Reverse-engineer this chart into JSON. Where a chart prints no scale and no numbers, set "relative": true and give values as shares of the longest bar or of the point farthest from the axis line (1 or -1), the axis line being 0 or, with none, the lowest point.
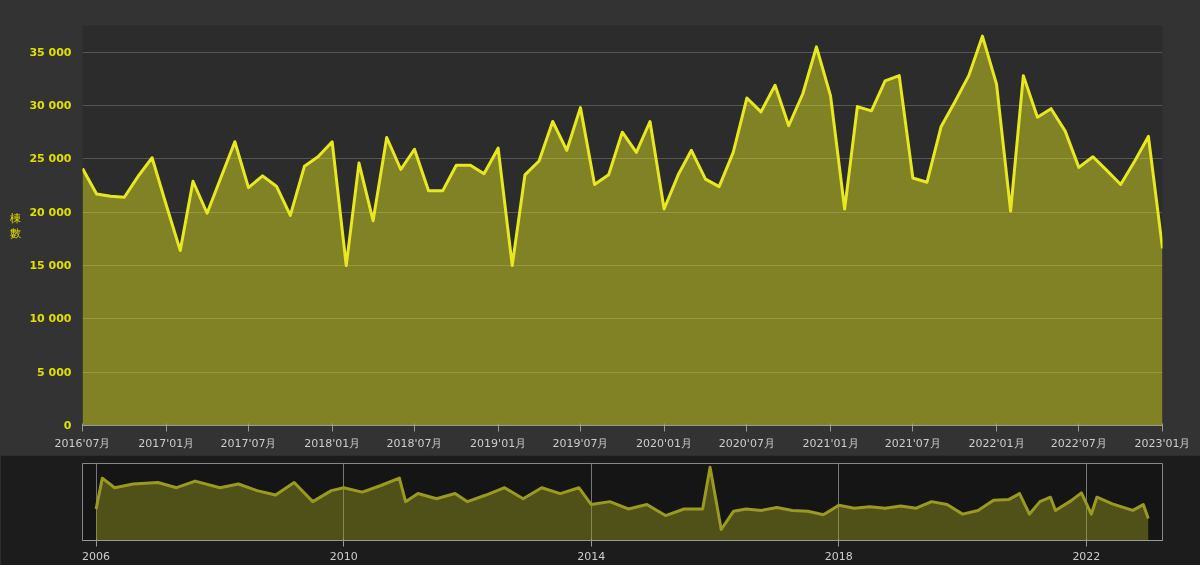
{
  "chart_data": [
    {
      "type": "area",
      "ylabel": "棟數",
      "color": "#e8e820",
      "x": [
        "2016-07",
        "2016-08",
        "2016-09",
        "2016-10",
        "2016-11",
        "2016-12",
        "2017-01",
        "2017-02",
        "2017-03",
        "2017-04",
        "2017-05",
        "2017-06",
        "2017-07",
        "2017-08",
        "2017-09",
        "2017-10",
        "2017-11",
        "2017-12",
        "2018-01",
        "2018-02",
        "2018-03",
        "2018-04",
        "2018-05",
        "2018-06",
        "2018-07",
        "2018-08",
        "2018-09",
        "2018-10",
        "2018-11",
        "2018-12",
        "2019-01",
        "2019-02",
        "2019-03",
        "2019-04",
        "2019-05",
        "2019-06",
        "2019-07",
        "2019-08",
        "2019-09",
        "2019-10",
        "2019-11",
        "2019-12",
        "2020-01",
        "2020-02",
        "2020-03",
        "2020-04",
        "2020-05",
        "2020-06",
        "2020-07",
        "2020-08",
        "2020-09",
        "2020-10",
        "2020-11",
        "2020-12",
        "2021-01",
        "2021-02",
        "2021-03",
        "2021-04",
        "2021-05",
        "2021-06",
        "2021-07",
        "2021-08",
        "2021-09",
        "2021-10",
        "2021-11",
        "2021-12",
        "2022-01",
        "2022-02",
        "2022-03",
        "2022-04",
        "2022-05",
        "2022-06",
        "2022-07",
        "2022-08",
        "2022-09",
        "2022-10",
        "2022-11",
        "2022-12",
        "2023-01"
      ],
      "values": [
        24100,
        21700,
        21500,
        21400,
        23400,
        25100,
        20700,
        16400,
        22900,
        19900,
        23200,
        26600,
        22300,
        23400,
        22400,
        19700,
        24300,
        25200,
        26600,
        15000,
        24600,
        19200,
        27000,
        24000,
        25900,
        22000,
        22000,
        24400,
        24400,
        23600,
        26000,
        15000,
        23500,
        24800,
        28500,
        25800,
        29800,
        22600,
        23500,
        27500,
        25600,
        28500,
        20300,
        23500,
        25800,
        23100,
        22400,
        25600,
        30700,
        29400,
        31900,
        28100,
        31100,
        35500,
        30900,
        20300,
        29900,
        29500,
        32300,
        32800,
        23200,
        22800,
        28000,
        30300,
        32800,
        36500,
        32000,
        20100,
        32800,
        28900,
        29700,
        27600,
        24200,
        25200,
        23900,
        22600,
        24800,
        27100,
        16600
      ],
      "xlim": [
        "2016-07",
        "2023-01"
      ],
      "xticks": [
        {
          "value": "2016-07",
          "label": "2016'07月"
        },
        {
          "value": "2017-01",
          "label": "2017'01月"
        },
        {
          "value": "2017-07",
          "label": "2017'07月"
        },
        {
          "value": "2018-01",
          "label": "2018'01月"
        },
        {
          "value": "2018-07",
          "label": "2018'07月"
        },
        {
          "value": "2019-01",
          "label": "2019'01月"
        },
        {
          "value": "2019-07",
          "label": "2019'07月"
        },
        {
          "value": "2020-01",
          "label": "2020'01月"
        },
        {
          "value": "2020-07",
          "label": "2020'07月"
        },
        {
          "value": "2021-01",
          "label": "2021'01月"
        },
        {
          "value": "2021-07",
          "label": "2021'07月"
        },
        {
          "value": "2022-01",
          "label": "2022'01月"
        },
        {
          "value": "2022-07",
          "label": "2022'07月"
        },
        {
          "value": "2023-01",
          "label": "2023'01月"
        }
      ],
      "ylim": [
        0,
        37500
      ],
      "yticks": [
        0,
        {
          "value": 5000,
          "label": "5 000"
        },
        {
          "value": 10000,
          "label": "10 000"
        },
        {
          "value": 15000,
          "label": "15 000"
        },
        {
          "value": 20000,
          "label": "20 000"
        },
        {
          "value": 25000,
          "label": "25 000"
        },
        {
          "value": 30000,
          "label": "30 000"
        },
        {
          "value": 35000,
          "label": "35 000"
        }
      ],
      "grid": "y"
    },
    {
      "type": "area",
      "relative": true,
      "color": "#9a9a20",
      "tick_labels": "x",
      "x": [
        2006.0,
        2006.1,
        2006.3,
        2006.6,
        2007.0,
        2007.3,
        2007.6,
        2008.0,
        2008.3,
        2008.6,
        2008.9,
        2009.2,
        2009.5,
        2009.8,
        2010.0,
        2010.3,
        2010.6,
        2010.9,
        2011.0,
        2011.2,
        2011.5,
        2011.8,
        2012.0,
        2012.3,
        2012.6,
        2012.9,
        2013.2,
        2013.5,
        2013.8,
        2014.0,
        2014.3,
        2014.6,
        2014.9,
        2015.2,
        2015.5,
        2015.8,
        2015.92,
        2016.1,
        2016.3,
        2016.5,
        2016.75,
        2017.0,
        2017.25,
        2017.5,
        2017.75,
        2018.0,
        2018.25,
        2018.5,
        2018.75,
        2019.0,
        2019.25,
        2019.5,
        2019.75,
        2020.0,
        2020.25,
        2020.5,
        2020.75,
        2020.92,
        2021.08,
        2021.25,
        2021.42,
        2021.5,
        2021.75,
        2021.92,
        2022.08,
        2022.17,
        2022.42,
        2022.75,
        2022.92,
        2023.0
      ],
      "values": [
        0.43,
        0.85,
        0.72,
        0.77,
        0.79,
        0.72,
        0.81,
        0.72,
        0.77,
        0.68,
        0.62,
        0.79,
        0.53,
        0.68,
        0.72,
        0.66,
        0.75,
        0.85,
        0.53,
        0.64,
        0.57,
        0.64,
        0.53,
        0.62,
        0.72,
        0.57,
        0.72,
        0.64,
        0.72,
        0.49,
        0.53,
        0.43,
        0.49,
        0.34,
        0.43,
        0.43,
        1.0,
        0.15,
        0.4,
        0.43,
        0.41,
        0.45,
        0.41,
        0.4,
        0.35,
        0.48,
        0.44,
        0.46,
        0.44,
        0.47,
        0.44,
        0.53,
        0.49,
        0.36,
        0.41,
        0.55,
        0.56,
        0.64,
        0.36,
        0.53,
        0.59,
        0.41,
        0.54,
        0.65,
        0.36,
        0.59,
        0.5,
        0.41,
        0.49,
        0.3
      ],
      "xlim": [
        2005.78,
        2023.23
      ],
      "xticks": [
        2006,
        2010,
        2014,
        2018,
        2022
      ],
      "grid": "x"
    }
  ]
}
